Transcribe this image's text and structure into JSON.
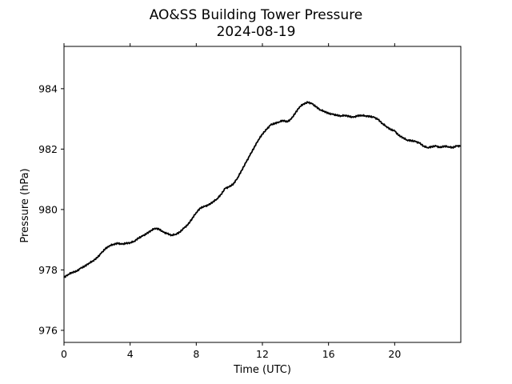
{
  "chart_data": {
    "type": "line",
    "title": "AO&SS Building Tower Pressure",
    "subtitle": "2024-08-19",
    "xlabel": "Time (UTC)",
    "ylabel": "Pressure (hPa)",
    "xlim": [
      0,
      24
    ],
    "ylim": [
      975.6,
      985.4
    ],
    "xticks": [
      0,
      4,
      8,
      12,
      16,
      20
    ],
    "xtick_labels": [
      "0",
      "4",
      "8",
      "12",
      "16",
      "20"
    ],
    "yticks": [
      976,
      978,
      980,
      982,
      984
    ],
    "ytick_labels": [
      "976",
      "978",
      "980",
      "982",
      "984"
    ],
    "grid": false,
    "line_color": "#000000",
    "series": [
      {
        "x": [
          0.0,
          0.25,
          0.5,
          0.75,
          1.0,
          1.25,
          1.5,
          1.75,
          2.0,
          2.25,
          2.5,
          2.75,
          3.0,
          3.25,
          3.5,
          3.75,
          4.0,
          4.25,
          4.5,
          4.75,
          5.0,
          5.25,
          5.5,
          5.75,
          6.0,
          6.25,
          6.5,
          6.75,
          7.0,
          7.25,
          7.5,
          7.75,
          8.0,
          8.25,
          8.5,
          8.75,
          9.0,
          9.25,
          9.5,
          9.75,
          10.0,
          10.25,
          10.5,
          10.75,
          11.0,
          11.25,
          11.5,
          11.75,
          12.0,
          12.25,
          12.5,
          12.75,
          13.0,
          13.25,
          13.5,
          13.75,
          14.0,
          14.25,
          14.5,
          14.75,
          15.0,
          15.25,
          15.5,
          15.75,
          16.0,
          16.25,
          16.5,
          16.75,
          17.0,
          17.25,
          17.5,
          17.75,
          18.0,
          18.25,
          18.5,
          18.75,
          19.0,
          19.25,
          19.5,
          19.75,
          20.0,
          20.25,
          20.5,
          20.75,
          21.0,
          21.25,
          21.5,
          21.75,
          22.0,
          22.25,
          22.5,
          22.75,
          23.0,
          23.25,
          23.5,
          23.75,
          24.0
        ],
        "values": [
          977.75,
          977.85,
          977.92,
          977.95,
          978.05,
          978.12,
          978.22,
          978.3,
          978.4,
          978.55,
          978.7,
          978.8,
          978.85,
          978.88,
          978.85,
          978.88,
          978.9,
          978.95,
          979.05,
          979.12,
          979.2,
          979.3,
          979.38,
          979.35,
          979.25,
          979.2,
          979.15,
          979.18,
          979.25,
          979.38,
          979.5,
          979.7,
          979.9,
          980.05,
          980.1,
          980.15,
          980.25,
          980.35,
          980.5,
          980.7,
          980.75,
          980.85,
          981.05,
          981.3,
          981.55,
          981.8,
          982.05,
          982.3,
          982.5,
          982.65,
          982.8,
          982.85,
          982.9,
          982.95,
          982.9,
          983.0,
          983.2,
          983.4,
          983.5,
          983.55,
          983.5,
          983.4,
          983.3,
          983.25,
          983.18,
          983.15,
          983.12,
          983.1,
          983.12,
          983.08,
          983.05,
          983.1,
          983.12,
          983.1,
          983.08,
          983.05,
          982.98,
          982.85,
          982.75,
          982.65,
          982.6,
          982.45,
          982.38,
          982.3,
          982.28,
          982.25,
          982.2,
          982.1,
          982.05,
          982.08,
          982.1,
          982.05,
          982.1,
          982.08,
          982.05,
          982.1,
          982.1
        ]
      }
    ]
  }
}
